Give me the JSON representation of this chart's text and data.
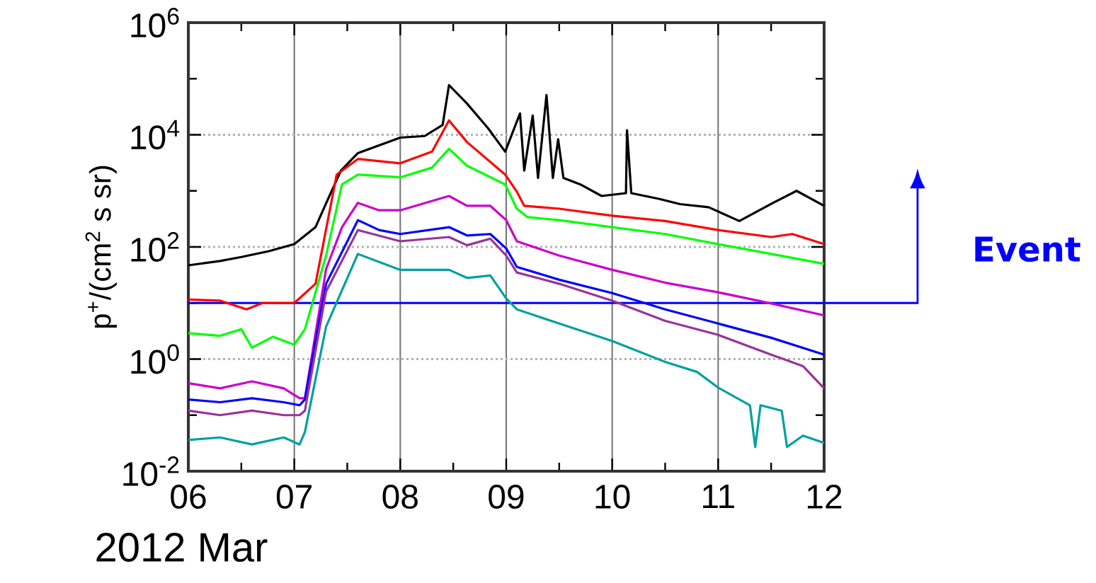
{
  "chart_data": {
    "type": "line",
    "xlabel": "2012 Mar",
    "ylabel": "p$^{+}$/(cm$^{2}$ s sr)",
    "log": "y",
    "grid": true,
    "xlim": [
      6,
      12
    ],
    "ylim": [
      0.01,
      1000000
    ],
    "xticks": [
      {
        "value": 6,
        "label": "06"
      },
      {
        "value": 6.5,
        "label": null
      },
      {
        "value": 7,
        "label": "07"
      },
      {
        "value": 7.5,
        "label": null
      },
      {
        "value": 8,
        "label": "08"
      },
      {
        "value": 8.5,
        "label": null
      },
      {
        "value": 9,
        "label": "09"
      },
      {
        "value": 9.5,
        "label": null
      },
      {
        "value": 10,
        "label": "10"
      },
      {
        "value": 10.5,
        "label": null
      },
      {
        "value": 11,
        "label": "11"
      },
      {
        "value": 11.5,
        "label": null
      },
      {
        "value": 12,
        "label": "12"
      }
    ],
    "yticks": [
      {
        "value": 0.01,
        "label": "10$^{-2}$"
      },
      {
        "value": 0.1,
        "label": null
      },
      {
        "value": 1,
        "label": "10$^{0}$"
      },
      {
        "value": 10,
        "label": null
      },
      {
        "value": 100,
        "label": "10$^{2}$"
      },
      {
        "value": 1000,
        "label": null
      },
      {
        "value": 10000,
        "label": "10$^{4}$"
      },
      {
        "value": 100000,
        "label": null
      },
      {
        "value": 1000000,
        "label": "10$^{6}$"
      }
    ],
    "ref_lines": [
      {
        "axis": "y",
        "value": 10,
        "label": "Event",
        "color": "#0000ff"
      }
    ],
    "series": [
      {
        "color": "#000000",
        "x": [
          6.0,
          6.3,
          6.5,
          6.76,
          7.0,
          7.2,
          7.3,
          7.44,
          7.6,
          8.0,
          8.23,
          8.4,
          8.46,
          8.63,
          8.83,
          8.99,
          9.13,
          9.17,
          9.25,
          9.3,
          9.38,
          9.44,
          9.49,
          9.54,
          9.7,
          9.9,
          10.13,
          10.14,
          10.18,
          10.44,
          10.64,
          10.91,
          11.2,
          11.51,
          11.74,
          12.0
        ],
        "values": [
          47,
          56,
          66,
          84,
          112,
          225,
          600,
          2300,
          4700,
          8900,
          9500,
          15000,
          77000,
          36000,
          13000,
          5000,
          24000,
          2300,
          22000,
          1700,
          51000,
          1700,
          8300,
          1700,
          1300,
          810,
          910,
          12000,
          910,
          720,
          580,
          510,
          290,
          600,
          1000,
          540
        ]
      },
      {
        "color": "#ff0000",
        "x": [
          6.0,
          6.3,
          6.55,
          6.7,
          7.0,
          7.2,
          7.4,
          7.6,
          8.0,
          8.3,
          8.46,
          8.63,
          8.99,
          9.1,
          9.17,
          9.5,
          10.0,
          10.5,
          11.0,
          11.5,
          11.7,
          12.0
        ],
        "values": [
          11.5,
          11,
          7.7,
          10,
          10,
          22,
          1950,
          3700,
          3100,
          5000,
          18000,
          7400,
          1950,
          970,
          540,
          480,
          360,
          290,
          200,
          150,
          170,
          112
        ]
      },
      {
        "color": "#00ff00",
        "x": [
          6.0,
          6.3,
          6.5,
          6.6,
          6.8,
          7.0,
          7.1,
          7.3,
          7.45,
          7.6,
          8.0,
          8.3,
          8.46,
          8.63,
          8.99,
          9.1,
          9.2,
          9.5,
          10.0,
          10.5,
          11.0,
          11.5,
          12.0
        ],
        "values": [
          2.9,
          2.6,
          3.4,
          1.6,
          2.5,
          1.8,
          3.4,
          70,
          1300,
          1950,
          1740,
          2600,
          5600,
          2800,
          1300,
          480,
          340,
          300,
          225,
          170,
          112,
          75,
          50
        ]
      },
      {
        "color": "#cc00cc",
        "x": [
          6.0,
          6.3,
          6.6,
          6.9,
          7.05,
          7.1,
          7.3,
          7.45,
          7.6,
          7.8,
          8.0,
          8.46,
          8.63,
          8.85,
          9.0,
          9.1,
          9.5,
          10.0,
          10.5,
          11.0,
          11.5,
          12.0
        ],
        "values": [
          0.37,
          0.3,
          0.4,
          0.3,
          0.2,
          0.2,
          40,
          225,
          610,
          450,
          450,
          810,
          540,
          540,
          300,
          126,
          70,
          39,
          23,
          15.5,
          9.8,
          6.0
        ]
      },
      {
        "color": "#0000ff",
        "x": [
          6.0,
          6.3,
          6.6,
          6.9,
          7.05,
          7.1,
          7.3,
          7.6,
          7.8,
          8.0,
          8.46,
          8.63,
          8.85,
          9.0,
          9.1,
          9.5,
          10.0,
          10.5,
          11.0,
          11.5,
          12.0
        ],
        "values": [
          0.19,
          0.17,
          0.2,
          0.17,
          0.15,
          0.19,
          22,
          300,
          200,
          170,
          225,
          160,
          170,
          94,
          44,
          26,
          15,
          7.7,
          4.3,
          2.4,
          1.2
        ]
      },
      {
        "color": "#993399",
        "x": [
          6.0,
          6.3,
          6.6,
          6.9,
          7.05,
          7.1,
          7.3,
          7.6,
          8.0,
          8.46,
          8.63,
          8.85,
          9.0,
          9.1,
          9.5,
          10.0,
          10.5,
          11.0,
          11.5,
          11.8,
          12.0
        ],
        "values": [
          0.12,
          0.1,
          0.12,
          0.1,
          0.1,
          0.12,
          16,
          200,
          126,
          150,
          107,
          140,
          70,
          35,
          22,
          11,
          4.8,
          2.7,
          1.2,
          0.75,
          0.3
        ]
      },
      {
        "color": "#00a0a0",
        "x": [
          6.0,
          6.3,
          6.6,
          6.9,
          7.05,
          7.1,
          7.3,
          7.6,
          8.0,
          8.46,
          8.63,
          8.85,
          9.0,
          9.1,
          9.5,
          10.0,
          10.5,
          10.8,
          11.0,
          11.3,
          11.35,
          11.4,
          11.6,
          11.65,
          11.8,
          12.0
        ],
        "values": [
          0.036,
          0.04,
          0.03,
          0.04,
          0.03,
          0.05,
          3.8,
          75,
          39,
          39,
          28,
          31,
          12,
          7.7,
          4.3,
          2.1,
          0.89,
          0.59,
          0.31,
          0.15,
          0.027,
          0.15,
          0.12,
          0.027,
          0.043,
          0.032
        ]
      }
    ]
  }
}
